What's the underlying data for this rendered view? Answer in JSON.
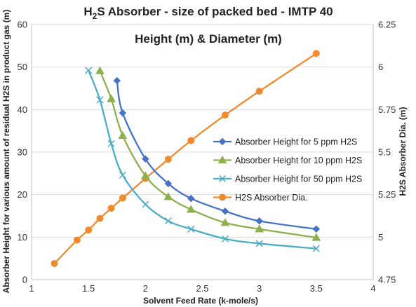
{
  "chart_data": {
    "type": "line",
    "title_prefix": "H",
    "title_sub_digit": "2",
    "title_suffix": "S Absorber - size of packed bed - IMTP 40",
    "subtitle": "Height (m) & Diameter (m)",
    "xlabel": "Solvent Feed Rate (k-mole/s)",
    "ylabel": "Absorber Height for various amount of residual H2S in product gas (m)",
    "y2label": "H2S Absorber Dia. (m)",
    "xlim": [
      1,
      4
    ],
    "ylim": [
      0,
      60
    ],
    "y2lim": [
      4.75,
      6.25
    ],
    "x_ticks": [
      "1",
      "1.5",
      "2",
      "2.5",
      "3",
      "3.5",
      "4"
    ],
    "y_ticks": [
      "0",
      "10",
      "20",
      "30",
      "40",
      "50",
      "60"
    ],
    "y2_ticks": [
      "4.75",
      "5",
      "5.25",
      "5.5",
      "5.75",
      "6",
      "6.25"
    ],
    "grid": "horizontal",
    "legend_position": "right-middle",
    "series": [
      {
        "name": "Absorber Height for 5 ppm H2S",
        "axis": "left",
        "color": "#4472c4",
        "marker": "diamond",
        "x": [
          1.75,
          1.8,
          2.0,
          2.2,
          2.4,
          2.7,
          3.0,
          3.5
        ],
        "values": [
          46.8,
          39.2,
          28.4,
          22.6,
          19.1,
          16.1,
          13.8,
          11.9
        ]
      },
      {
        "name": "Absorber Height for 10 ppm H2S",
        "axis": "left",
        "color": "#8db04e",
        "marker": "triangle",
        "x": [
          1.6,
          1.7,
          1.8,
          2.0,
          2.2,
          2.4,
          2.7,
          3.0,
          3.5
        ],
        "values": [
          49.1,
          42.5,
          33.9,
          24.4,
          19.5,
          16.5,
          13.4,
          11.9,
          9.9
        ]
      },
      {
        "name": "Absorber Height for 50 ppm H2S",
        "axis": "left",
        "color": "#4bacc6",
        "marker": "asterisk",
        "x": [
          1.5,
          1.6,
          1.7,
          1.8,
          2.0,
          2.2,
          2.4,
          2.7,
          3.0,
          3.5
        ],
        "values": [
          49.2,
          42.3,
          32.0,
          24.6,
          17.7,
          13.8,
          11.9,
          9.6,
          8.5,
          7.3
        ]
      },
      {
        "name": "H2S Absorber Dia.",
        "axis": "right",
        "color": "#f08a2e",
        "marker": "circle",
        "x": [
          1.2,
          1.4,
          1.5,
          1.6,
          1.7,
          1.8,
          2.0,
          2.2,
          2.4,
          2.7,
          3.0,
          3.5
        ],
        "values": [
          4.845,
          4.983,
          5.042,
          5.11,
          5.17,
          5.23,
          5.345,
          5.458,
          5.568,
          5.718,
          5.858,
          6.08
        ]
      }
    ]
  }
}
